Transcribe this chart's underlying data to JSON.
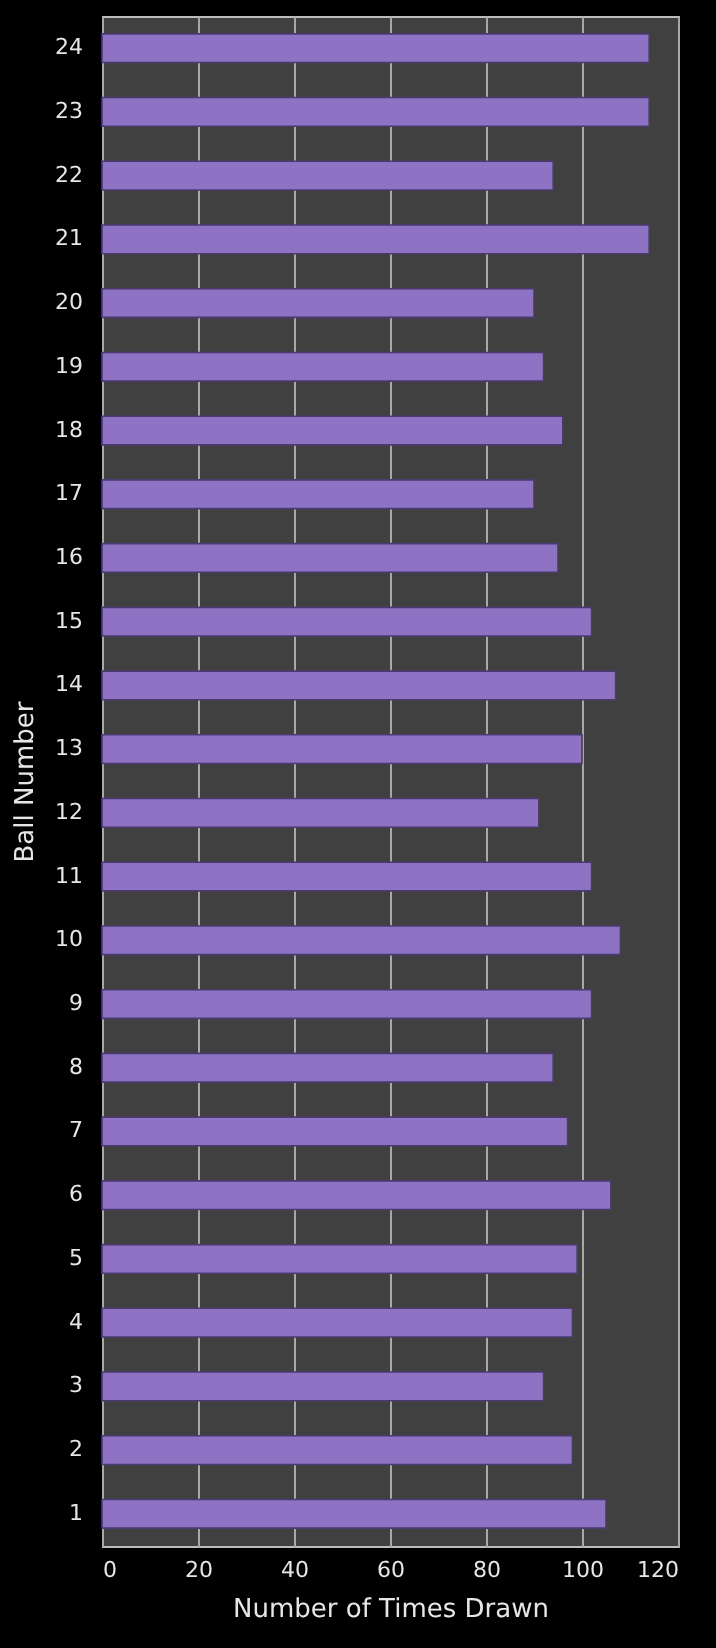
{
  "chart_data": {
    "type": "bar",
    "orientation": "horizontal",
    "xlabel": "Number  of Times Drawn",
    "ylabel": "Ball Number",
    "categories": [
      "24",
      "23",
      "22",
      "21",
      "20",
      "19",
      "18",
      "17",
      "16",
      "15",
      "14",
      "13",
      "12",
      "11",
      "10",
      "9",
      "8",
      "7",
      "6",
      "5",
      "4",
      "3",
      "2",
      "1"
    ],
    "values": [
      114,
      114,
      94,
      114,
      90,
      92,
      96,
      90,
      95,
      102,
      107,
      100,
      91,
      102,
      108,
      102,
      94,
      97,
      106,
      99,
      98,
      92,
      98,
      105
    ],
    "color": "#8e72c4",
    "xlim": [
      0,
      120
    ],
    "xticks": [
      0,
      20,
      40,
      60,
      80,
      100,
      120
    ],
    "grid": "x"
  }
}
